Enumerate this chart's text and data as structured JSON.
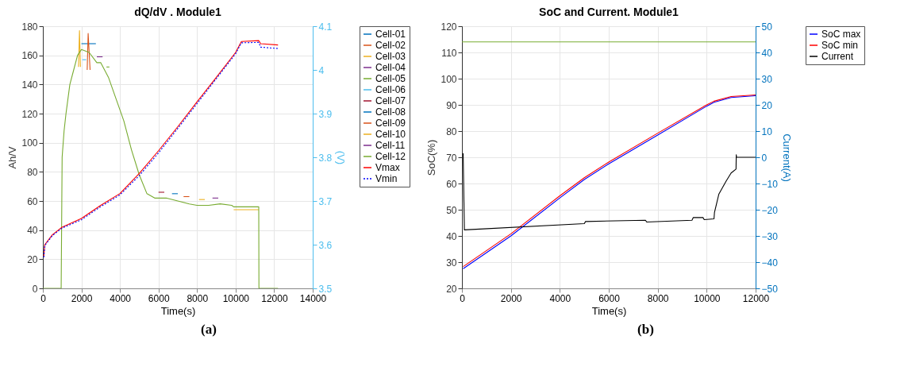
{
  "chart_data": [
    {
      "type": "line",
      "title": "dQ/dV . Module1",
      "xlabel": "Time(s)",
      "ylabel": "Ah/V",
      "y2label": "(V)",
      "xlim": [
        0,
        14000
      ],
      "xticks": [
        0,
        2000,
        4000,
        6000,
        8000,
        10000,
        12000,
        14000
      ],
      "ylim": [
        0,
        180
      ],
      "yticks": [
        0,
        20,
        40,
        60,
        80,
        100,
        120,
        140,
        160,
        180
      ],
      "y2lim": [
        3.5,
        4.1
      ],
      "y2ticks": [
        3.5,
        3.6,
        3.7,
        3.8,
        3.9,
        4,
        4.1
      ],
      "grid": true,
      "legend": "right",
      "annotations": [
        "(a)"
      ],
      "x": [
        0,
        950,
        1000,
        1100,
        1200,
        1400,
        1600,
        1800,
        2000,
        2400,
        2800,
        3000,
        3400,
        3800,
        4200,
        4600,
        5000,
        5400,
        5800,
        6400,
        7000,
        7600,
        8000,
        8600,
        9200,
        9800,
        9900,
        10500,
        11200,
        11210,
        12200
      ],
      "series": [
        {
          "name": "Cell-01",
          "color": "#0072bd",
          "x": [
            2000,
            2400,
            2750
          ],
          "values": [
            168,
            168,
            168
          ]
        },
        {
          "name": "Cell-02",
          "color": "#d95319",
          "x": [
            2300,
            2350,
            2450
          ],
          "values": [
            150,
            175,
            150
          ]
        },
        {
          "name": "Cell-03",
          "color": "#edb120",
          "x": [
            1850,
            1900,
            1950,
            2000,
            9900,
            10500,
            11200
          ],
          "values": [
            152,
            177,
            152,
            null,
            54,
            54,
            54
          ]
        },
        {
          "name": "Cell-04",
          "color": "#7e2f8e",
          "x": [
            2800,
            3000,
            3100
          ],
          "values": [
            159,
            159,
            159
          ]
        },
        {
          "name": "Cell-05",
          "color": "#77ac30",
          "x": [
            3300,
            3450
          ],
          "values": [
            152,
            152
          ]
        },
        {
          "name": "Cell-06",
          "color": "#4cbded",
          "x": [
            2050,
            2250
          ],
          "values": [
            157,
            157
          ]
        },
        {
          "name": "Cell-07",
          "color": "#a2142f",
          "x": [
            6000,
            6300
          ],
          "values": [
            66,
            66
          ]
        },
        {
          "name": "Cell-08",
          "color": "#0173be",
          "x": [
            6700,
            7000
          ],
          "values": [
            65,
            65
          ]
        },
        {
          "name": "Cell-09",
          "color": "#d85219",
          "x": [
            7300,
            7600
          ],
          "values": [
            63,
            63
          ]
        },
        {
          "name": "Cell-10",
          "color": "#ecb01f",
          "x": [
            8100,
            8400
          ],
          "values": [
            61,
            61
          ]
        },
        {
          "name": "Cell-11",
          "color": "#7d2e8d",
          "x": [
            8800,
            9100
          ],
          "values": [
            62,
            62
          ]
        },
        {
          "name": "Cell-12",
          "color": "#78ab31",
          "values": [
            0,
            0,
            90,
            108,
            120,
            140,
            150,
            160,
            164,
            162,
            155,
            155,
            145,
            130,
            115,
            95,
            78,
            65,
            62,
            62,
            60,
            58,
            57,
            57,
            58,
            57,
            56,
            56,
            56,
            0,
            0
          ]
        },
        {
          "name": "Vmax",
          "color": "#ff0000",
          "axis": "y2",
          "line_style": "solid",
          "x": [
            50,
            100,
            500,
            1000,
            2000,
            3000,
            4000,
            5000,
            6000,
            7000,
            8000,
            9000,
            10000,
            10300,
            11200,
            11300,
            12200
          ],
          "values": [
            3.573,
            3.6,
            3.623,
            3.64,
            3.66,
            3.69,
            3.717,
            3.763,
            3.815,
            3.87,
            3.927,
            3.983,
            4.04,
            4.065,
            4.067,
            4.06,
            4.057
          ]
        },
        {
          "name": "Vmin",
          "color": "#0000ff",
          "axis": "y2",
          "line_style": "dotted",
          "x": [
            50,
            100,
            500,
            1000,
            2000,
            3000,
            4000,
            5000,
            6000,
            7000,
            8000,
            9000,
            10000,
            10300,
            11200,
            11300,
            12200
          ],
          "values": [
            3.571,
            3.598,
            3.621,
            3.638,
            3.657,
            3.687,
            3.714,
            3.758,
            3.81,
            3.866,
            3.923,
            3.98,
            4.037,
            4.062,
            4.063,
            4.052,
            4.049
          ]
        }
      ]
    },
    {
      "type": "line",
      "title": "SoC and Current. Module1",
      "xlabel": "Time(s)",
      "ylabel": "SoC(%)",
      "y2label": "Current(A)",
      "xlim": [
        0,
        12000
      ],
      "xticks": [
        0,
        2000,
        4000,
        6000,
        8000,
        10000,
        12000
      ],
      "ylim": [
        20,
        120
      ],
      "yticks": [
        20,
        30,
        40,
        50,
        60,
        70,
        80,
        90,
        100,
        110,
        120
      ],
      "y2lim": [
        -50,
        50
      ],
      "y2ticks": [
        -50,
        -40,
        -30,
        -20,
        -10,
        0,
        10,
        20,
        30,
        40,
        50
      ],
      "grid": true,
      "legend": "top right",
      "annotations": [
        "(b)"
      ],
      "x": [
        50,
        2000,
        4000,
        5000,
        6000,
        8000,
        10000,
        10300,
        11000,
        12000
      ],
      "series": [
        {
          "name": "SoC max",
          "color": "#0000ff",
          "values": [
            27.5,
            40,
            54.5,
            61.5,
            67.5,
            78.5,
            89.5,
            91,
            92.8,
            93.5
          ]
        },
        {
          "name": "SoC min",
          "color": "#ff0000",
          "values": [
            28.3,
            40.8,
            55.3,
            62.2,
            68.2,
            79.2,
            90,
            91.4,
            93.2,
            93.8
          ]
        },
        {
          "name": "Current",
          "color": "#000000",
          "axis": "y2",
          "x": [
            50,
            100,
            5000,
            5050,
            7500,
            7550,
            9400,
            9450,
            9850,
            9900,
            10300,
            10320,
            10500,
            10800,
            11000,
            11200,
            11210,
            11220,
            12000
          ],
          "values": [
            1.5,
            -27.7,
            -25.3,
            -24.5,
            -24,
            -24.7,
            -24,
            -23,
            -23,
            -23.8,
            -23.5,
            -21,
            -14,
            -9,
            -6,
            -4.5,
            1,
            0,
            0
          ]
        },
        {
          "color": "#77ac30",
          "axis": "y2",
          "x": [
            0,
            12000
          ],
          "values": [
            44,
            44
          ]
        }
      ]
    }
  ]
}
